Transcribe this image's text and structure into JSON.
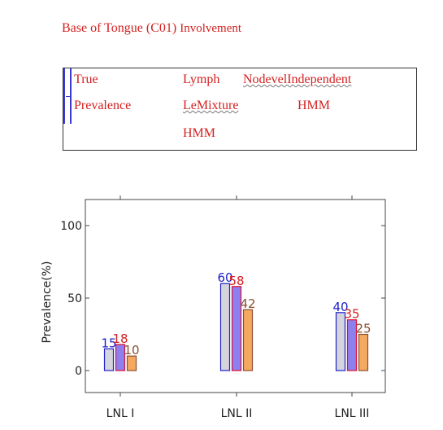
{
  "header": {
    "title_main": "Base of Tongue (C01)",
    "title_sub": "Involvement"
  },
  "legend": {
    "col1_line1": "True",
    "col1_line2": "Prevalence",
    "col2_line1": "Lymph",
    "col2_line2": "LeMixture",
    "col2_line3": "HMM",
    "col3_line1": "NodevelIndependent",
    "col3_line2": "HMM"
  },
  "chart_data": {
    "type": "bar",
    "categories": [
      "LNL I",
      "LNL II",
      "LNL III"
    ],
    "series": [
      {
        "values": [
          15,
          60,
          40
        ],
        "fill": "#d4d4dc",
        "stroke": "#2020c8",
        "label_color": "#2020c8"
      },
      {
        "values": [
          18,
          58,
          35
        ],
        "fill": "#8c80f0",
        "stroke": "#e01030",
        "label_color": "#d42020"
      },
      {
        "values": [
          10,
          42,
          25
        ],
        "fill": "#f4a860",
        "stroke": "#8a5030",
        "label_color": "#8a5030"
      }
    ],
    "ylabel": "Prevalence(%)",
    "yticks": [
      0,
      50,
      100
    ],
    "ylim": [
      0,
      100
    ]
  }
}
